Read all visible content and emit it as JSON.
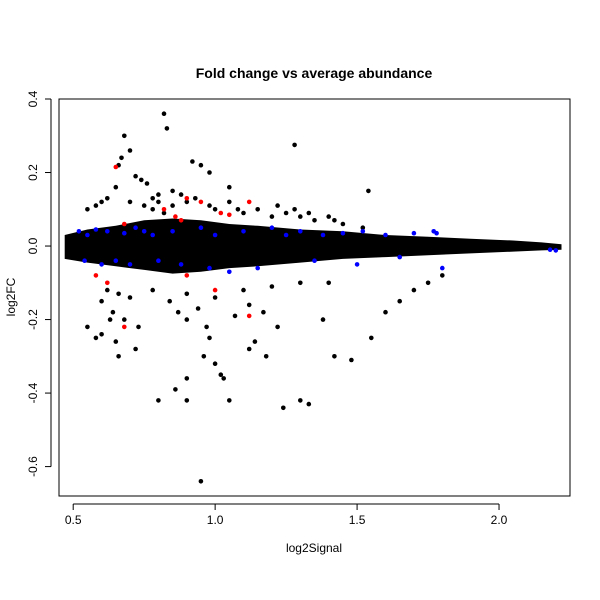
{
  "chart_data": {
    "type": "scatter",
    "title": "Fold change vs average abundance",
    "xlabel": "log2Signal",
    "ylabel": "log2FC",
    "xlim": [
      0.45,
      2.25
    ],
    "ylim": [
      -0.68,
      0.4
    ],
    "xticks": [
      0.5,
      1.0,
      1.5,
      2.0
    ],
    "xtick_labels": [
      "0.5",
      "1.0",
      "1.5",
      "2.0"
    ],
    "yticks": [
      -0.6,
      -0.4,
      -0.2,
      0.0,
      0.2,
      0.4
    ],
    "ytick_labels": [
      "-0.6",
      "-0.4",
      "-0.2",
      "0.0",
      "0.2",
      "0.4"
    ],
    "grid": false,
    "legend": "none",
    "colors": {
      "black": "#000000",
      "blue": "#0000ff",
      "red": "#ff0000"
    },
    "series": [
      {
        "color": "#000000",
        "x": [
          0.82,
          0.83,
          0.68,
          0.7,
          0.67,
          0.66,
          0.65,
          0.72,
          0.74,
          0.76,
          0.92,
          1.05,
          1.28,
          1.54,
          0.95,
          0.98,
          0.8,
          0.85,
          0.6,
          0.58,
          0.55,
          0.62,
          0.7,
          0.75,
          0.78,
          0.8,
          0.88,
          0.9,
          0.85,
          0.93,
          0.78,
          0.82,
          0.98,
          1.0,
          1.05,
          1.08,
          1.1,
          1.15,
          1.2,
          1.22,
          1.25,
          1.28,
          1.3,
          1.33,
          1.35,
          1.4,
          1.42,
          1.45,
          1.52,
          1.3,
          1.33,
          1.24,
          0.95,
          0.8,
          0.86,
          0.9,
          0.9,
          1.02,
          1.03,
          1.05,
          0.96,
          1.0,
          0.72,
          0.66,
          0.55,
          0.58,
          0.6,
          0.63,
          0.65,
          0.98,
          1.12,
          1.14,
          1.18,
          1.22,
          1.38,
          1.42,
          1.48,
          1.55,
          1.6,
          1.65,
          1.7,
          1.75,
          1.8,
          0.6,
          0.64,
          0.68,
          0.73,
          0.87,
          0.9,
          0.94,
          0.97,
          1.07,
          1.12,
          1.17,
          0.62,
          0.66,
          0.7,
          0.78,
          0.84,
          0.9,
          1.0,
          1.1,
          1.2,
          1.3,
          1.4
        ],
        "y": [
          0.36,
          0.32,
          0.3,
          0.26,
          0.24,
          0.22,
          0.16,
          0.19,
          0.18,
          0.17,
          0.23,
          0.16,
          0.275,
          0.15,
          0.22,
          0.2,
          0.14,
          0.15,
          0.12,
          0.11,
          0.1,
          0.13,
          0.12,
          0.11,
          0.13,
          0.12,
          0.14,
          0.12,
          0.11,
          0.13,
          0.1,
          0.09,
          0.11,
          0.1,
          0.12,
          0.1,
          0.09,
          0.1,
          0.08,
          0.11,
          0.09,
          0.1,
          0.08,
          0.09,
          0.07,
          0.08,
          0.07,
          0.06,
          0.05,
          -0.42,
          -0.43,
          -0.44,
          -0.64,
          -0.42,
          -0.39,
          -0.42,
          -0.36,
          -0.35,
          -0.36,
          -0.42,
          -0.3,
          -0.32,
          -0.28,
          -0.3,
          -0.22,
          -0.25,
          -0.24,
          -0.2,
          -0.26,
          -0.25,
          -0.28,
          -0.26,
          -0.3,
          -0.22,
          -0.2,
          -0.3,
          -0.31,
          -0.25,
          -0.18,
          -0.15,
          -0.12,
          -0.1,
          -0.08,
          -0.15,
          -0.18,
          -0.2,
          -0.22,
          -0.18,
          -0.2,
          -0.17,
          -0.22,
          -0.19,
          -0.16,
          -0.18,
          -0.12,
          -0.13,
          -0.14,
          -0.12,
          -0.15,
          -0.13,
          -0.14,
          -0.12,
          -0.11,
          -0.1,
          -0.1
        ]
      },
      {
        "color": "#0000ff",
        "x": [
          0.52,
          0.55,
          0.58,
          0.62,
          0.68,
          0.72,
          0.75,
          0.78,
          0.85,
          0.95,
          1.0,
          1.1,
          1.2,
          1.25,
          1.3,
          1.38,
          1.45,
          1.52,
          1.6,
          1.7,
          1.77,
          1.78,
          0.54,
          0.6,
          0.65,
          0.7,
          0.8,
          0.88,
          0.98,
          1.05,
          1.15,
          1.35,
          1.5,
          1.65,
          1.8,
          2.18,
          2.2
        ],
        "y": [
          0.04,
          0.03,
          0.045,
          0.04,
          0.035,
          0.05,
          0.04,
          0.03,
          0.04,
          0.05,
          0.03,
          0.04,
          0.05,
          0.03,
          0.04,
          0.03,
          0.035,
          0.04,
          0.03,
          0.035,
          0.04,
          0.035,
          -0.04,
          -0.05,
          -0.04,
          -0.05,
          -0.04,
          -0.05,
          -0.06,
          -0.07,
          -0.06,
          -0.04,
          -0.05,
          -0.03,
          -0.06,
          -0.01,
          -0.012
        ]
      },
      {
        "color": "#ff0000",
        "x": [
          0.65,
          0.68,
          0.82,
          0.86,
          0.88,
          0.9,
          0.95,
          1.02,
          1.05,
          1.12,
          0.58,
          0.62,
          0.68,
          1.12,
          1.0,
          0.9
        ],
        "y": [
          0.215,
          0.06,
          0.1,
          0.08,
          0.07,
          0.13,
          0.12,
          0.09,
          0.085,
          0.12,
          -0.08,
          -0.1,
          -0.22,
          -0.19,
          -0.12,
          -0.08
        ]
      }
    ]
  }
}
